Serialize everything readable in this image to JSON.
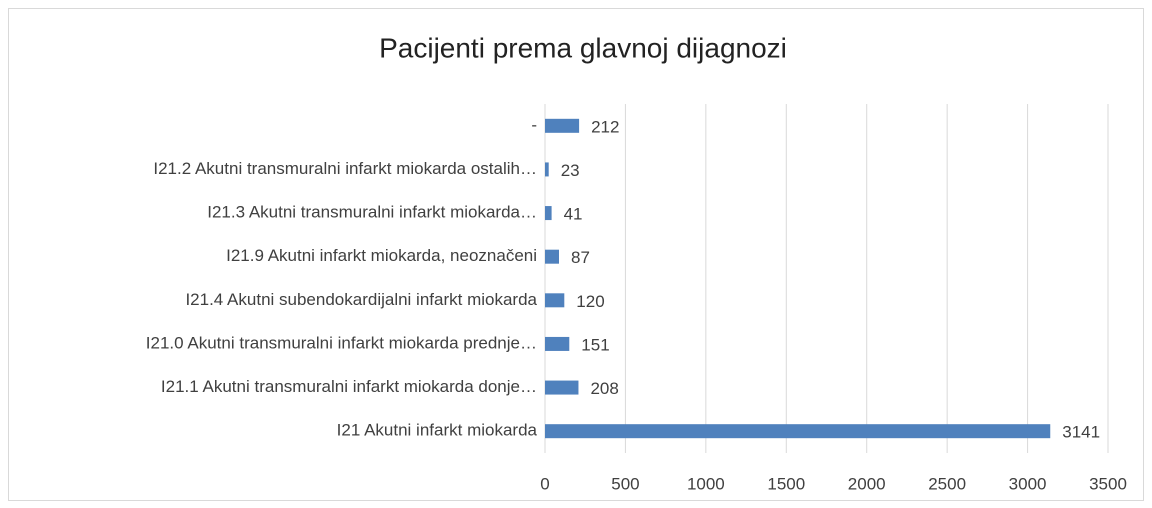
{
  "chart_data": {
    "type": "barh",
    "title": "Pacijenti prema glavnoj dijagnozi",
    "categories": [
      "-",
      "I21.2 Akutni transmuralni infarkt miokarda ostalih…",
      "I21.3 Akutni transmuralni infarkt miokarda…",
      "I21.9 Akutni infarkt miokarda, neoznačeni",
      "I21.4 Akutni subendokardijalni infarkt miokarda",
      "I21.0 Akutni transmuralni infarkt miokarda prednje…",
      "I21.1 Akutni transmuralni infarkt  miokarda donje…",
      "I21 Akutni infarkt miokarda"
    ],
    "values": [
      212,
      23,
      41,
      87,
      120,
      151,
      208,
      3141
    ],
    "color": "#4f81bd",
    "xlim": [
      0,
      3500
    ],
    "xticks": [
      0,
      500,
      1000,
      1500,
      2000,
      2500,
      3000,
      3500
    ],
    "grid": true
  }
}
